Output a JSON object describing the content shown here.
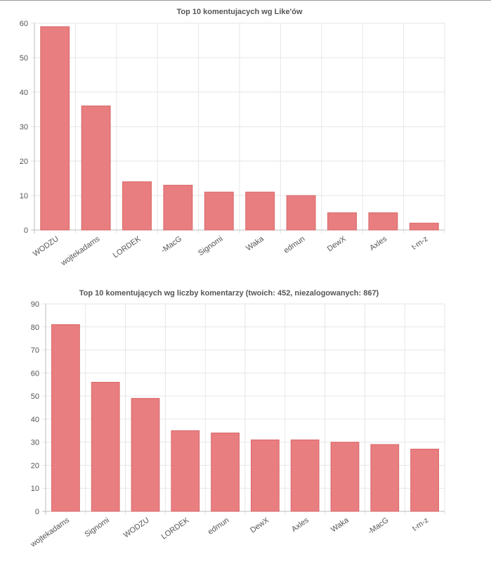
{
  "chart_data": [
    {
      "type": "bar",
      "title": "Top 10 komentujacych wg Like'ów",
      "categories": [
        "WODZU",
        "wojtekadams",
        "LORDEK",
        "-MacG",
        "Signomi",
        "Waka",
        "edmun",
        "DewX",
        "Axles",
        "t-m-z"
      ],
      "values": [
        59,
        36,
        14,
        13,
        11,
        11,
        10,
        5,
        5,
        2
      ],
      "ylim": [
        0,
        60
      ],
      "yticks": [
        0,
        10,
        20,
        30,
        40,
        50,
        60
      ],
      "grid": true,
      "colors": {
        "bar": "#e87e80",
        "bar_border": "#d96668"
      }
    },
    {
      "type": "bar",
      "title": "Top 10 komentujących wg liczby komentarzy (twoich: 452, niezalogowanych: 867)",
      "categories": [
        "wojtekadams",
        "Signomi",
        "WODZU",
        "LORDEK",
        "edmun",
        "DewX",
        "Axles",
        "Waka",
        "-MacG",
        "t-m-z"
      ],
      "values": [
        81,
        56,
        49,
        35,
        34,
        31,
        31,
        30,
        29,
        27
      ],
      "ylim": [
        0,
        90
      ],
      "yticks": [
        0,
        10,
        20,
        30,
        40,
        50,
        60,
        70,
        80,
        90
      ],
      "grid": true,
      "colors": {
        "bar": "#e87e80",
        "bar_border": "#d96668"
      }
    }
  ]
}
